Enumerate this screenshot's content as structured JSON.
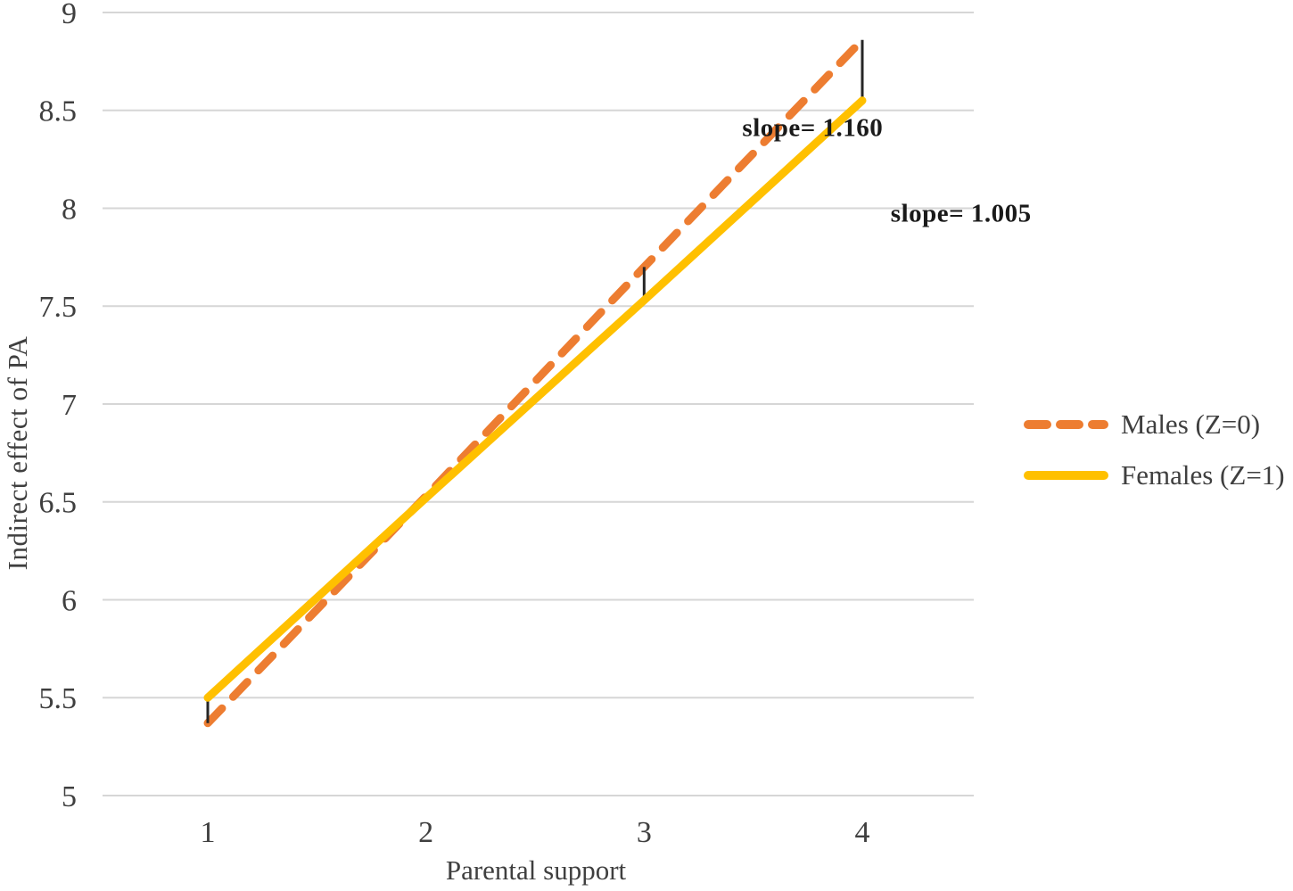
{
  "chart_data": {
    "type": "line",
    "title": "",
    "xlabel": "Parental support",
    "ylabel": "Indirect effect of PA",
    "x": [
      1,
      2,
      3,
      4
    ],
    "xticks": [
      1,
      2,
      3,
      4
    ],
    "ylim": [
      5,
      9
    ],
    "ytick_step": 0.5,
    "ytick_labels": [
      "5",
      "5.5",
      "6",
      "6.5",
      "7",
      "7.5",
      "8",
      "8.5",
      "9"
    ],
    "grid": "horizontal",
    "legend_position": "right",
    "series": [
      {
        "name": "Males (Z=0)",
        "values": [
          5.37,
          6.53,
          7.7,
          8.86
        ],
        "color": "#ED7D31",
        "style": "dashed",
        "slope": 1.16
      },
      {
        "name": "Females (Z=1)",
        "values": [
          5.5,
          6.52,
          7.53,
          8.55
        ],
        "color": "#FFC000",
        "style": "solid",
        "slope": 1.005
      }
    ],
    "connectors_at_x": [
      1,
      3,
      4
    ],
    "annotations": [
      {
        "text": "slope= 1.160",
        "x": 3.45,
        "y": 8.41
      },
      {
        "text": "slope= 1.005",
        "x": 4.13,
        "y": 7.97
      }
    ]
  },
  "colors": {
    "gridline": "#D6D6D6",
    "tick_text": "#3F3F3F",
    "axis_title_text": "#3F3F3F",
    "connector": "#262626",
    "annotation_text": "#1A1A1A",
    "background": "#FFFFFF"
  }
}
